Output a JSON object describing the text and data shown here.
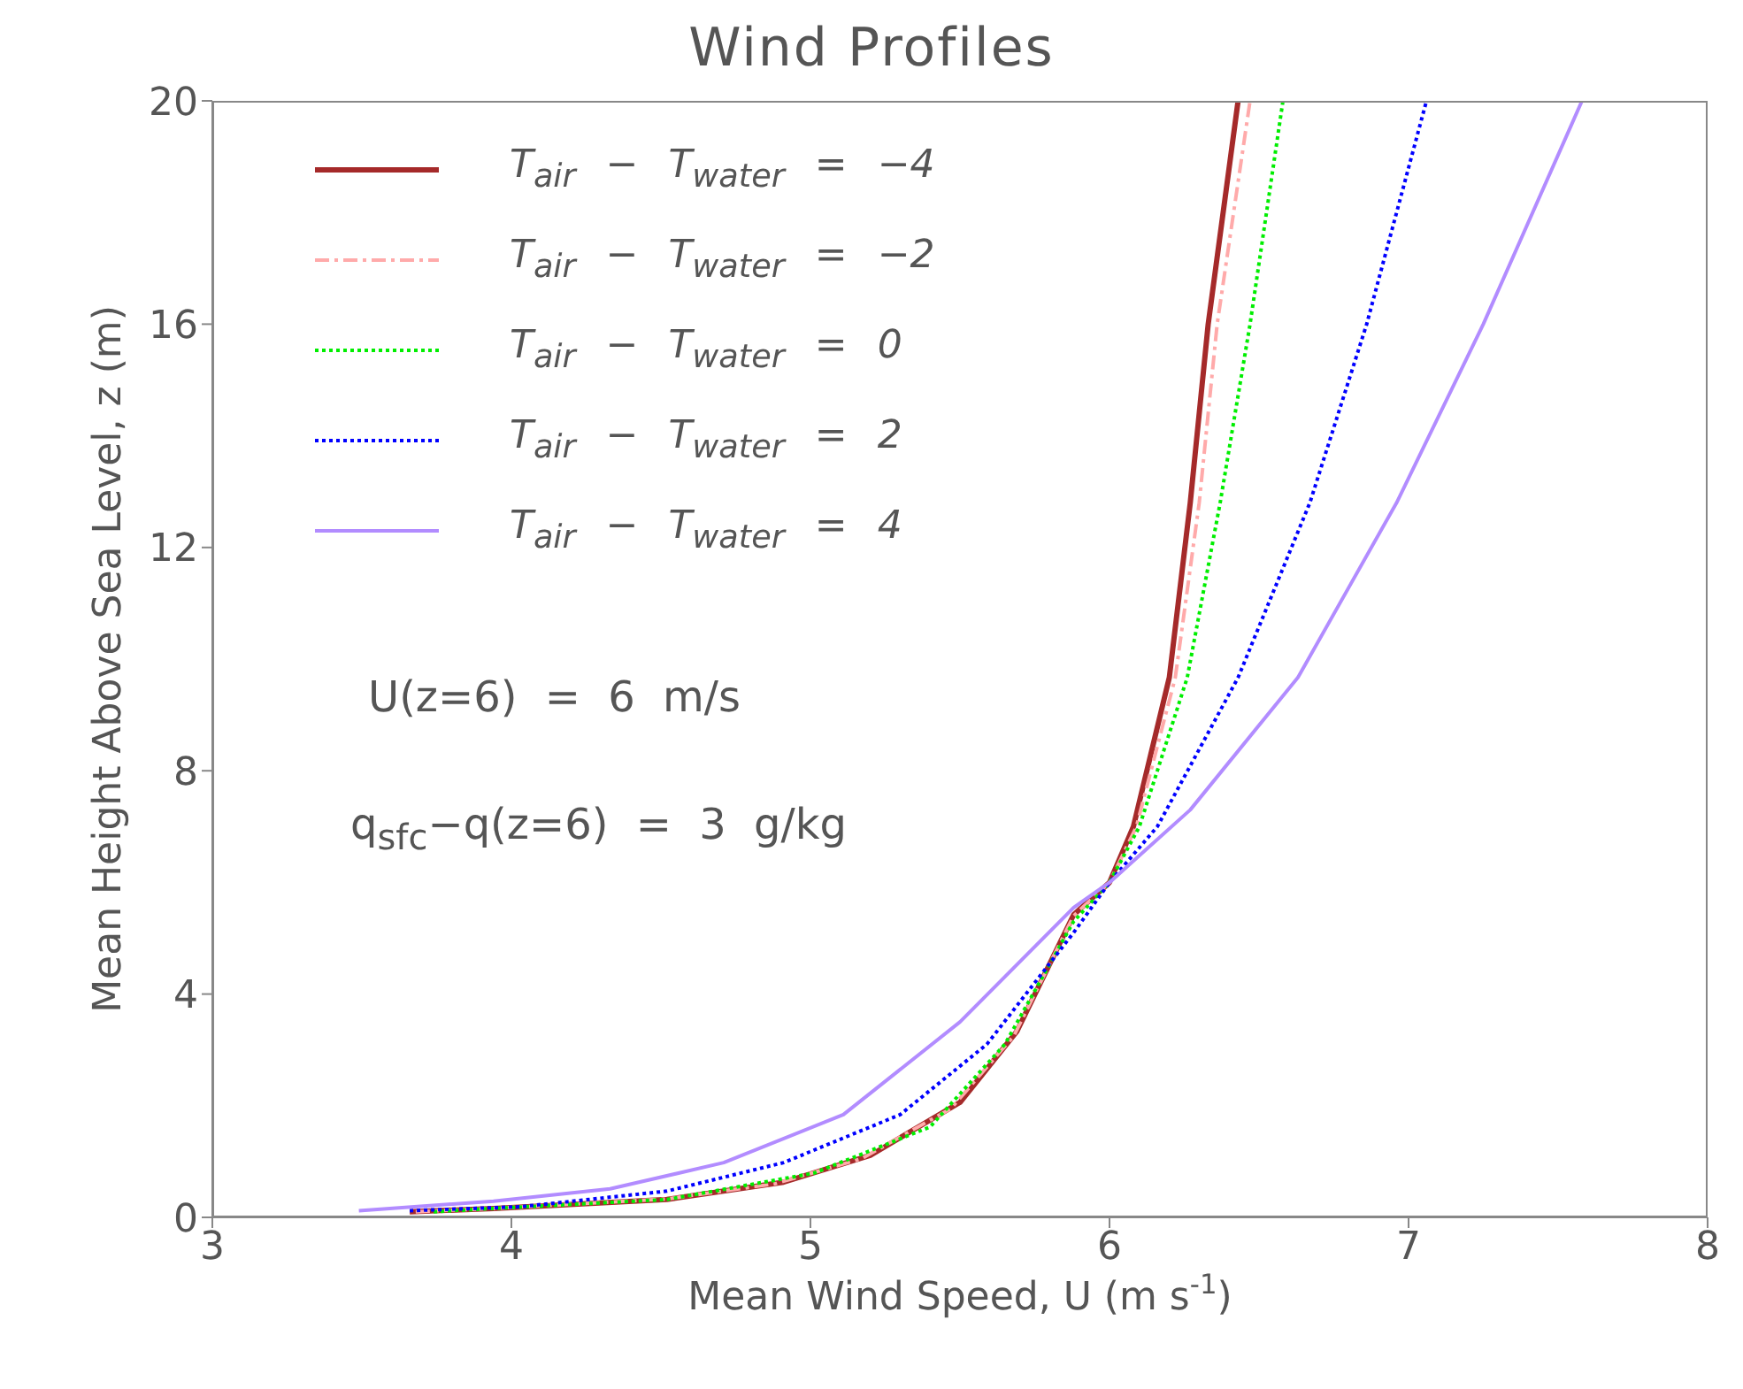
{
  "chart_data": {
    "type": "line",
    "title": "Wind Profiles",
    "xlabel": "Mean Wind Speed, U  (m s$^{-1}$)",
    "ylabel": "Mean Height Above Sea Level, z (m)",
    "xlim": [
      3,
      8
    ],
    "xticks": [
      3,
      4,
      5,
      6,
      7,
      8
    ],
    "ylim": [
      0,
      20
    ],
    "yticks": [
      0,
      4,
      8,
      12,
      16,
      20
    ],
    "grid": false,
    "legend": "top left",
    "annotations": [
      "U(z=6) = 6 m/s",
      "q$_{sfc}$−q(z=6) = 3 g/kg"
    ],
    "series": [
      {
        "name": "T$_{air}$ − T$_{water}$ = −4",
        "color": "#a52a2a",
        "line_style": "solid",
        "x": [
          3.66,
          3.94,
          4.52,
          4.91,
          5.2,
          5.5,
          5.69,
          5.88,
          6.0,
          6.08,
          6.2,
          6.27,
          6.33,
          6.43
        ],
        "values": [
          0.1,
          0.16,
          0.32,
          0.63,
          1.11,
          2.06,
          3.33,
          5.42,
          6.0,
          7.0,
          9.67,
          12.8,
          16.0,
          20.0
        ]
      },
      {
        "name": "T$_{air}$ − T$_{water}$ = −2",
        "color": "#ffaaaa",
        "line_style": "dashed",
        "x": [
          3.68,
          3.94,
          4.52,
          4.88,
          5.17,
          5.47,
          5.68,
          5.88,
          6.0,
          6.09,
          6.22,
          6.3,
          6.36,
          6.47
        ],
        "values": [
          0.1,
          0.16,
          0.33,
          0.6,
          1.05,
          1.95,
          3.25,
          5.4,
          6.0,
          7.0,
          9.67,
          12.8,
          16.0,
          20.0
        ]
      },
      {
        "name": "T$_{air}$ − T$_{water}$ = 0",
        "color": "#00ee00",
        "line_style": "dotted",
        "x": [
          3.74,
          3.94,
          4.52,
          5.01,
          5.4,
          5.65,
          5.88,
          6.0,
          6.1,
          6.26,
          6.37,
          6.47,
          6.58
        ],
        "values": [
          0.1,
          0.16,
          0.32,
          0.79,
          1.62,
          3.1,
          5.3,
          6.0,
          7.0,
          9.67,
          12.8,
          16.0,
          20.0
        ]
      },
      {
        "name": "T$_{air}$ − T$_{water}$ = 2",
        "color": "#0000ff",
        "line_style": "dotted",
        "x": [
          3.66,
          4.03,
          4.52,
          4.91,
          5.3,
          5.59,
          5.88,
          6.0,
          6.16,
          6.43,
          6.67,
          6.86,
          7.06
        ],
        "values": [
          0.12,
          0.19,
          0.47,
          0.98,
          1.84,
          3.1,
          5.1,
          6.0,
          7.0,
          9.67,
          12.8,
          16.0,
          20.0
        ]
      },
      {
        "name": "T$_{air}$ − T$_{water}$ = 4",
        "color": "#b28cff",
        "line_style": "solid",
        "x": [
          3.49,
          3.94,
          4.33,
          4.71,
          5.11,
          5.5,
          5.88,
          6.0,
          6.27,
          6.63,
          6.96,
          7.25,
          7.58
        ],
        "values": [
          0.12,
          0.29,
          0.51,
          0.98,
          1.84,
          3.5,
          5.55,
          6.0,
          7.3,
          9.67,
          12.8,
          16.0,
          20.0
        ]
      }
    ]
  }
}
